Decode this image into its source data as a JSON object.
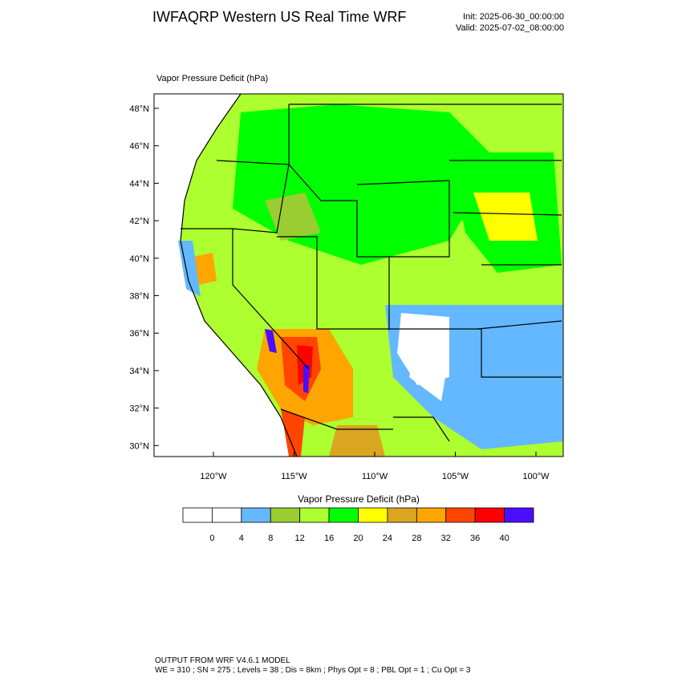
{
  "header": {
    "title": "IWFAQRP Western US Real Time WRF",
    "init": "Init: 2025-06-30_00:00:00",
    "valid": "Valid: 2025-07-02_08:00:00"
  },
  "map": {
    "label": "Vapor Pressure Deficit   (hPa)",
    "lat_ticks": [
      "48°N",
      "46°N",
      "44°N",
      "42°N",
      "40°N",
      "38°N",
      "36°N",
      "34°N",
      "32°N",
      "30°N"
    ],
    "lon_ticks": [
      "120°W",
      "115°W",
      "110°W",
      "105°W",
      "100°W"
    ]
  },
  "colorbar": {
    "title": "Vapor Pressure Deficit  (hPa)",
    "levels": [
      0,
      4,
      8,
      12,
      16,
      20,
      24,
      28,
      32,
      36,
      40
    ],
    "colors": [
      "#ffffff",
      "#ffffff",
      "#63b8ff",
      "#9acd32",
      "#adff2f",
      "#00ff00",
      "#ffff00",
      "#daa520",
      "#ffa500",
      "#ff4500",
      "#ff0000",
      "#4b0eff"
    ]
  },
  "footer": [
    "OUTPUT FROM WRF V4.6.1 MODEL",
    "WE = 310 ; SN = 275 ; Levels = 38 ; Dis = 8km ; Phys Opt = 8 ; PBL Opt = 1 ; Cu Opt = 3"
  ]
}
